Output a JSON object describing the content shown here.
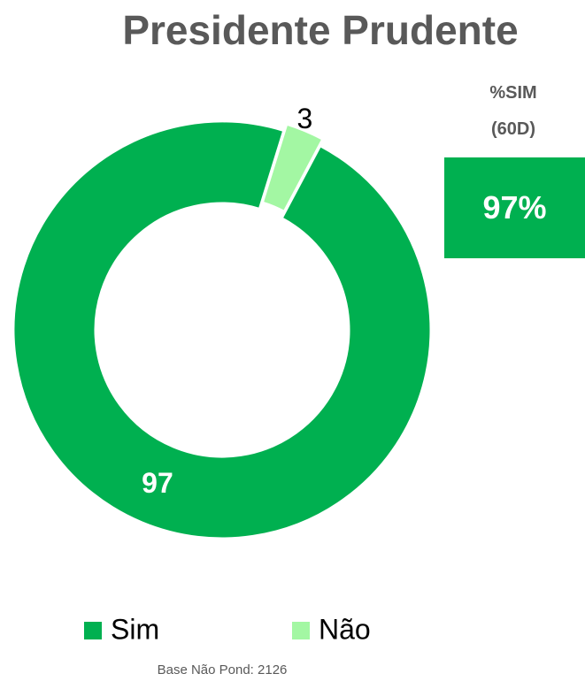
{
  "chart_data": {
    "type": "donut",
    "title": "Presidente Prudente",
    "series": [
      {
        "name": "Sim",
        "color": "#00b050",
        "values": [
          97
        ]
      },
      {
        "name": "Não",
        "color": "#a3f7a3",
        "values": [
          3
        ]
      }
    ],
    "legend": "bottom"
  },
  "summary": {
    "title": "%SIM (60D)",
    "value": "97%"
  },
  "footer": "Base Não Pond: 2126"
}
